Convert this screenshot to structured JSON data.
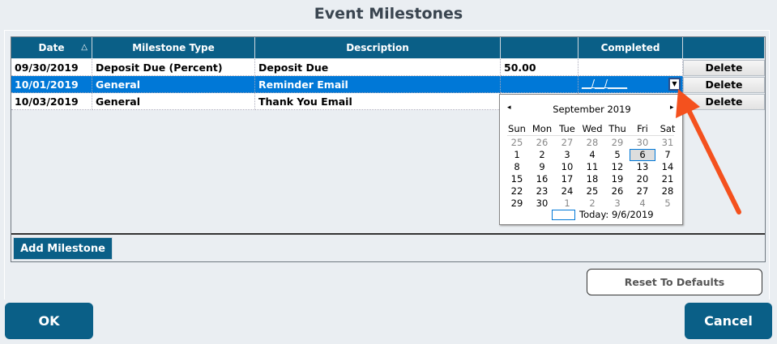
{
  "title": "Event Milestones",
  "columns": [
    "Date",
    "Milestone Type",
    "Description",
    "",
    "Completed",
    ""
  ],
  "sort_indicator": "△",
  "rows": [
    {
      "date": "09/30/2019",
      "type": "Deposit Due (Percent)",
      "description": "Deposit Due",
      "amount": "50.00",
      "completed": "",
      "action": "Delete",
      "selected": false
    },
    {
      "date": "10/01/2019",
      "type": "General",
      "description": "Reminder Email",
      "amount": "",
      "completed": "__/__/____",
      "action": "Delete",
      "selected": true
    },
    {
      "date": "10/03/2019",
      "type": "General",
      "description": "Thank You Email",
      "amount": "",
      "completed": "",
      "action": "Delete",
      "selected": false
    }
  ],
  "calendar": {
    "month_label": "September 2019",
    "prev": "◂",
    "next": "▸",
    "weekdays": [
      "Sun",
      "Mon",
      "Tue",
      "Wed",
      "Thu",
      "Fri",
      "Sat"
    ],
    "weeks": [
      [
        "25",
        "26",
        "27",
        "28",
        "29",
        "30",
        "31"
      ],
      [
        "1",
        "2",
        "3",
        "4",
        "5",
        "6",
        "7"
      ],
      [
        "8",
        "9",
        "10",
        "11",
        "12",
        "13",
        "14"
      ],
      [
        "15",
        "16",
        "17",
        "18",
        "19",
        "20",
        "21"
      ],
      [
        "22",
        "23",
        "24",
        "25",
        "26",
        "27",
        "28"
      ],
      [
        "29",
        "30",
        "1",
        "2",
        "3",
        "4",
        "5"
      ]
    ],
    "selected_day": "6",
    "today_label": "Today: 9/6/2019"
  },
  "buttons": {
    "add": "Add Milestone",
    "reset": "Reset To Defaults",
    "ok": "OK",
    "cancel": "Cancel"
  },
  "colors": {
    "header": "#0a5f87",
    "selection": "#0078d7",
    "annotation_arrow": "#f4511e"
  }
}
